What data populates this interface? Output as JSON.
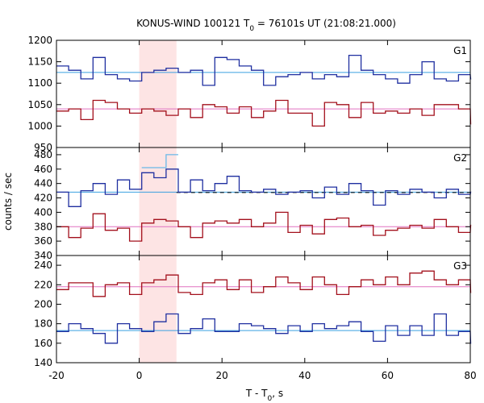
{
  "chart_data": {
    "type": "line",
    "title": "KONUS-WIND 100121 T",
    "title_sub": "0",
    "title_rest": " = 76101s UT (21:08:21.000)",
    "xlabel": "T - T",
    "xlabel_sub": "0",
    "xlabel_rest": ", s",
    "ylabel": "counts / sec",
    "xlim": [
      -20,
      80
    ],
    "x_ticks": [
      "-20",
      "0",
      "20",
      "40",
      "60",
      "80"
    ],
    "grid": false,
    "highlight_interval": [
      0,
      9
    ],
    "highlight_color": "#fde4e4",
    "step_width": 2.944,
    "step_start": -20,
    "panels": [
      {
        "label": "G1",
        "ylim": [
          950,
          1200
        ],
        "y_ticks": [
          950,
          1000,
          1050,
          1100,
          1150,
          1200
        ],
        "series": [
          {
            "color": "#1f2fa0",
            "values": [
              1140,
              1130,
              1110,
              1160,
              1120,
              1110,
              1105,
              1125,
              1130,
              1135,
              1125,
              1130,
              1095,
              1160,
              1155,
              1140,
              1130,
              1095,
              1115,
              1120,
              1125,
              1110,
              1120,
              1115,
              1165,
              1130,
              1120,
              1110,
              1100,
              1120,
              1150,
              1110,
              1105,
              1120,
              1110
            ],
            "background": 1125,
            "background_color": "#3aa0e0"
          },
          {
            "color": "#a3101c",
            "values": [
              1035,
              1040,
              1015,
              1060,
              1055,
              1040,
              1030,
              1040,
              1035,
              1025,
              1040,
              1020,
              1050,
              1045,
              1030,
              1045,
              1020,
              1035,
              1060,
              1030,
              1030,
              1000,
              1055,
              1050,
              1020,
              1055,
              1030,
              1035,
              1030,
              1040,
              1025,
              1050,
              1050,
              1040,
              1005
            ],
            "background": 1040,
            "background_color": "#e070c0"
          }
        ]
      },
      {
        "label": "G2",
        "ylim": [
          340,
          490
        ],
        "y_ticks": [
          340,
          360,
          380,
          400,
          420,
          440,
          460,
          480
        ],
        "series": [
          {
            "color": "#1f2fa0",
            "values": [
              428,
              408,
              430,
              440,
              425,
              445,
              432,
              455,
              448,
              460,
              428,
              445,
              430,
              440,
              450,
              430,
              428,
              432,
              425,
              428,
              430,
              420,
              435,
              425,
              440,
              430,
              410,
              430,
              425,
              432,
              428,
              420,
              432,
              425,
              428
            ],
            "background": 428,
            "background_color": "#3aa0e0",
            "dashed_line": true
          },
          {
            "color": "#6ab8e8",
            "values": [
              null,
              null,
              null,
              null,
              null,
              null,
              null,
              462,
              462,
              480,
              null,
              null,
              null,
              null,
              null,
              null,
              null,
              null,
              null,
              null,
              null,
              null,
              null,
              null,
              null,
              null,
              null,
              null,
              null,
              null,
              null,
              null,
              null,
              null,
              null
            ]
          },
          {
            "color": "#a3101c",
            "values": [
              380,
              365,
              378,
              398,
              375,
              378,
              360,
              385,
              390,
              388,
              380,
              365,
              385,
              388,
              385,
              390,
              380,
              385,
              400,
              372,
              382,
              370,
              390,
              392,
              380,
              382,
              368,
              375,
              378,
              382,
              378,
              390,
              380,
              372,
              382
            ],
            "background": 380,
            "background_color": "#e070c0"
          }
        ]
      },
      {
        "label": "G3",
        "ylim": [
          140,
          250
        ],
        "y_ticks": [
          140,
          160,
          180,
          200,
          220,
          240
        ],
        "series": [
          {
            "color": "#a3101c",
            "values": [
              215,
              222,
              222,
              208,
              220,
              222,
              210,
              222,
              225,
              230,
              212,
              210,
              222,
              225,
              215,
              225,
              212,
              218,
              228,
              222,
              215,
              228,
              220,
              210,
              218,
              225,
              220,
              228,
              220,
              232,
              234,
              225,
              220,
              225,
              212
            ],
            "background": 218,
            "background_color": "#e070c0"
          },
          {
            "color": "#1f2fa0",
            "values": [
              172,
              180,
              175,
              170,
              160,
              180,
              175,
              172,
              182,
              190,
              170,
              175,
              185,
              172,
              172,
              180,
              178,
              175,
              170,
              178,
              172,
              180,
              175,
              178,
              182,
              172,
              162,
              178,
              168,
              178,
              168,
              190,
              168,
              172,
              160
            ],
            "background": 173,
            "background_color": "#3aa0e0"
          }
        ]
      }
    ]
  }
}
